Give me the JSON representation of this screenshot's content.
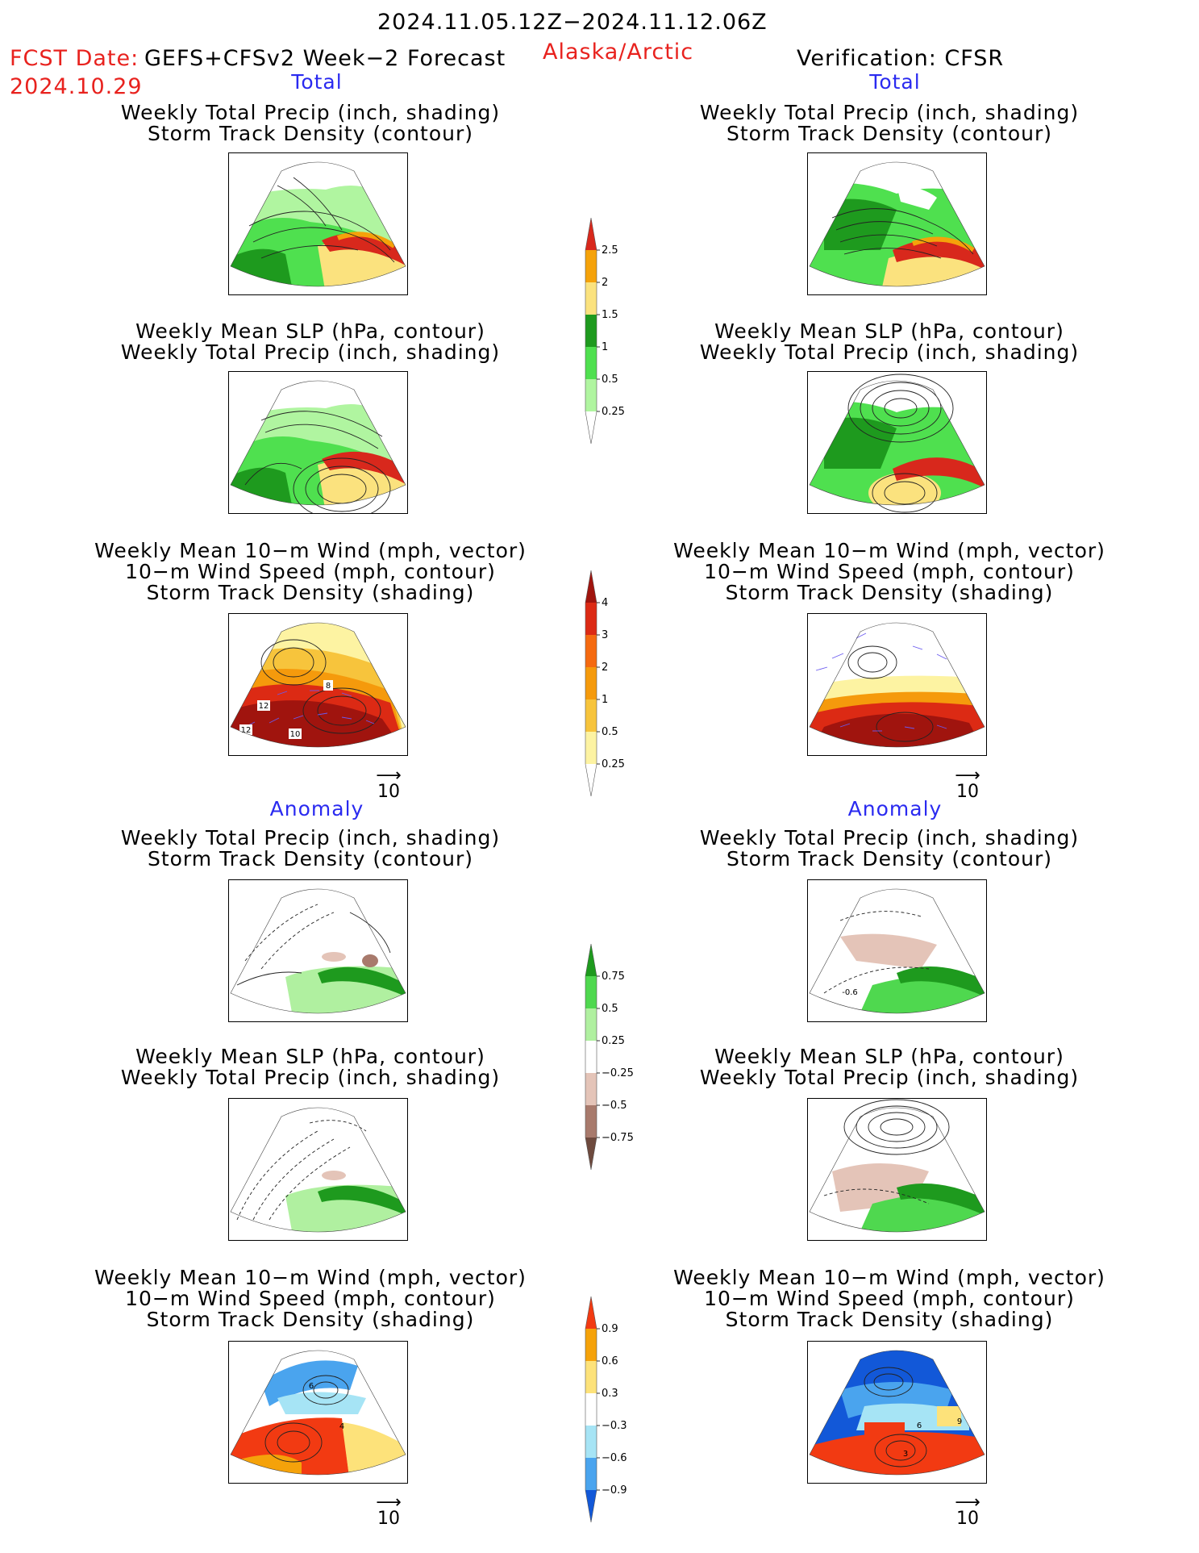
{
  "header": {
    "date_range": "2024.11.05.12Z−2024.11.12.06Z",
    "fcst_label": "FCST Date:",
    "forecast_name": "GEFS+CFSv2 Week−2 Forecast",
    "fcst_date": "2024.10.29",
    "region": "Alaska/Arctic",
    "verification": "Verification: CFSR"
  },
  "sections": {
    "total": "Total",
    "anomaly": "Anomaly"
  },
  "captions": {
    "precip_track": [
      "Weekly Total Precip (inch, shading)",
      "Storm Track Density (contour)"
    ],
    "slp_precip": [
      "Weekly Mean SLP (hPa, contour)",
      "Weekly Total Precip (inch, shading)"
    ],
    "wind_track": [
      "Weekly Mean 10−m Wind (mph, vector)",
      "10−m Wind Speed (mph, contour)",
      "Storm Track Density (shading)"
    ]
  },
  "vector_reference": "10",
  "colorbars": {
    "precip_total": {
      "labels": [
        "2.5",
        "2",
        "1.5",
        "1",
        "0.5",
        "0.25"
      ],
      "colors": [
        "#d8281c",
        "#f5a20a",
        "#fbe27e",
        "#1e9a1e",
        "#4fe04f",
        "#b0f5a0",
        "#ffffff"
      ]
    },
    "track_total": {
      "labels": [
        "4",
        "3",
        "2",
        "1",
        "0.5",
        "0.25"
      ],
      "colors": [
        "#a0140e",
        "#dc2a14",
        "#f56a10",
        "#f59a0c",
        "#f7c43c",
        "#fdf3a2",
        "#ffffff"
      ]
    },
    "precip_anom": {
      "labels": [
        "0.75",
        "0.5",
        "0.25",
        "−0.25",
        "−0.5",
        "−0.75"
      ],
      "colors": [
        "#1e9a1e",
        "#4fd84f",
        "#b0f0a0",
        "#ffffff",
        "#e4c4b8",
        "#a87a6c",
        "#6e4a3e"
      ]
    },
    "track_anom": {
      "labels": [
        "0.9",
        "0.6",
        "0.3",
        "−0.3",
        "−0.6",
        "−0.9"
      ],
      "colors": [
        "#f23a12",
        "#f5a20a",
        "#fde27a",
        "#ffffff",
        "#a6e4f5",
        "#4aa4ee",
        "#1258d8"
      ]
    }
  },
  "panel_labels": {
    "t_wind_left": [
      "12",
      "12",
      "10",
      "8"
    ],
    "a_wind_left": [
      "6",
      "4"
    ],
    "a_wind_right": [
      "6",
      "3",
      "9"
    ],
    "a_precip_right": [
      "-0.6"
    ]
  }
}
